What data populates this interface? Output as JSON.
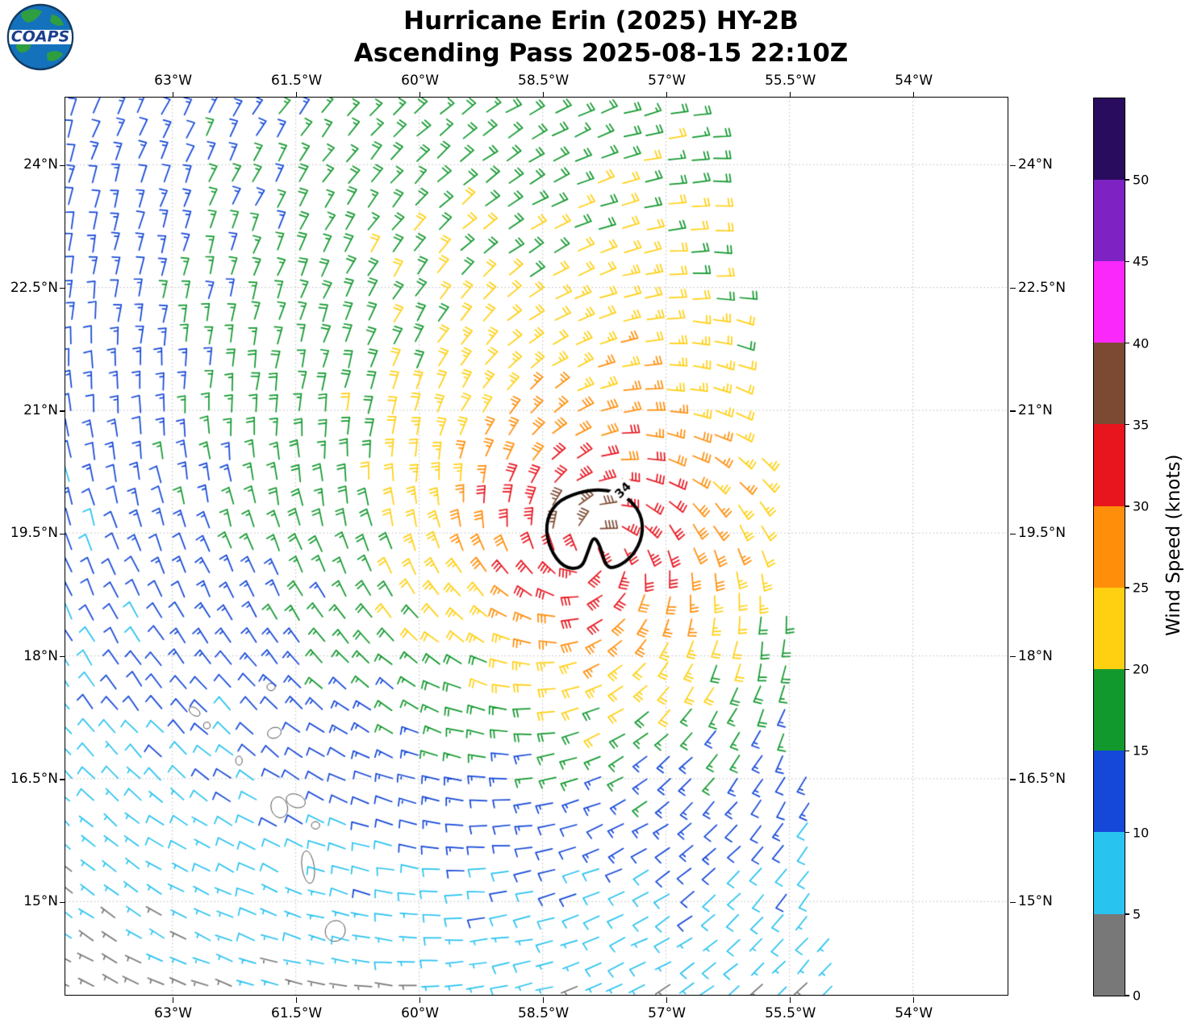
{
  "logo": {
    "text": "COAPS"
  },
  "title": {
    "line1": "Hurricane Erin (2025) HY-2B",
    "line2": "Ascending Pass 2025-08-15 22:10Z"
  },
  "axes": {
    "lon_range": [
      -64.3,
      -52.85
    ],
    "lat_range": [
      13.86,
      24.82
    ],
    "lon_ticks": [
      {
        "value": -63,
        "label": "63°W"
      },
      {
        "value": -61.5,
        "label": "61.5°W"
      },
      {
        "value": -60,
        "label": "60°W"
      },
      {
        "value": -58.5,
        "label": "58.5°W"
      },
      {
        "value": -57,
        "label": "57°W"
      },
      {
        "value": -55.5,
        "label": "55.5°W"
      },
      {
        "value": -54,
        "label": "54°W"
      }
    ],
    "lat_ticks": [
      {
        "value": 24,
        "label": "24°N"
      },
      {
        "value": 22.5,
        "label": "22.5°N"
      },
      {
        "value": 21,
        "label": "21°N"
      },
      {
        "value": 19.5,
        "label": "19.5°N"
      },
      {
        "value": 18,
        "label": "18°N"
      },
      {
        "value": 16.5,
        "label": "16.5°N"
      },
      {
        "value": 15,
        "label": "15°N"
      }
    ],
    "grid": "dotted"
  },
  "colorbar": {
    "label": "Wind Speed (knots)",
    "min": 0,
    "max": 55,
    "tick_values": [
      0,
      5,
      10,
      15,
      20,
      25,
      30,
      35,
      40,
      45,
      50
    ],
    "segments": [
      {
        "from": 0,
        "to": 5,
        "color": "#787878"
      },
      {
        "from": 5,
        "to": 10,
        "color": "#29c3f0"
      },
      {
        "from": 10,
        "to": 15,
        "color": "#1548d8"
      },
      {
        "from": 15,
        "to": 20,
        "color": "#12992e"
      },
      {
        "from": 20,
        "to": 25,
        "color": "#ffd012"
      },
      {
        "from": 25,
        "to": 30,
        "color": "#ff8e0a"
      },
      {
        "from": 30,
        "to": 35,
        "color": "#e8141e"
      },
      {
        "from": 35,
        "to": 40,
        "color": "#7c4a32"
      },
      {
        "from": 40,
        "to": 45,
        "color": "#fa28fa"
      },
      {
        "from": 45,
        "to": 50,
        "color": "#7e22c4"
      },
      {
        "from": 50,
        "to": 55,
        "color": "#2a0c5e"
      }
    ]
  },
  "chart_data": {
    "type": "wind_barb_map",
    "title": "Hurricane Erin (2025) HY-2B",
    "subtitle": "Ascending Pass 2025-08-15 22:10Z",
    "units": "knots",
    "grid_spacing_deg": 0.28,
    "storm_center": {
      "lon": -57.9,
      "lat": 19.3
    },
    "wind_profile_kt_by_radius_deg": [
      [
        0,
        32
      ],
      [
        0.35,
        36
      ],
      [
        0.7,
        33
      ],
      [
        1.2,
        29
      ],
      [
        2,
        23
      ],
      [
        3,
        18
      ],
      [
        4,
        15.5
      ],
      [
        5,
        13.2
      ],
      [
        6,
        11.2
      ],
      [
        7,
        9.5
      ],
      [
        8.5,
        7.5
      ],
      [
        12,
        6
      ]
    ],
    "asymmetry": {
      "amp_base": 1.2,
      "amp_per_deg": 0.9,
      "amp_max": 6,
      "phase_deg": 90
    },
    "inflow_deg": 20,
    "noise_kt": 1.8,
    "swath_right_edge": {
      "lon_at_lat": {
        "a": -52.9,
        "b": -0.1433
      }
    },
    "contour_34kt": {
      "label": "34",
      "center": {
        "lon": -57.85,
        "lat": 19.52
      },
      "points": [
        [
          -0.62,
          0.08
        ],
        [
          -0.5,
          0.35
        ],
        [
          -0.22,
          0.48
        ],
        [
          0.08,
          0.52
        ],
        [
          0.36,
          0.44
        ],
        [
          0.55,
          0.22
        ],
        [
          0.57,
          -0.05
        ],
        [
          0.45,
          -0.3
        ],
        [
          0.25,
          -0.44
        ],
        [
          0.12,
          -0.44
        ],
        [
          0.05,
          -0.18
        ],
        [
          -0.03,
          -0.05
        ],
        [
          -0.1,
          -0.25
        ],
        [
          -0.18,
          -0.46
        ],
        [
          -0.4,
          -0.44
        ],
        [
          -0.56,
          -0.22
        ]
      ],
      "label_offset": [
        0.33,
        0.5
      ],
      "label_rotation_deg": -45
    },
    "islands": [
      {
        "name": "St. Kitts",
        "lon": -62.73,
        "lat": 17.32,
        "rx": 0.075,
        "ry": 0.045,
        "rot": -35
      },
      {
        "name": "Nevis",
        "lon": -62.58,
        "lat": 17.15,
        "rx": 0.04,
        "ry": 0.04,
        "rot": 0
      },
      {
        "name": "Barbuda",
        "lon": -61.8,
        "lat": 17.62,
        "rx": 0.05,
        "ry": 0.045,
        "rot": 0
      },
      {
        "name": "Antigua",
        "lon": -61.76,
        "lat": 17.06,
        "rx": 0.085,
        "ry": 0.065,
        "rot": 20
      },
      {
        "name": "Montserrat",
        "lon": -62.19,
        "lat": 16.72,
        "rx": 0.04,
        "ry": 0.055,
        "rot": 0
      },
      {
        "name": "Guadeloupe-west",
        "lon": -61.7,
        "lat": 16.15,
        "rx": 0.1,
        "ry": 0.13,
        "rot": 15
      },
      {
        "name": "Guadeloupe-east",
        "lon": -61.5,
        "lat": 16.23,
        "rx": 0.12,
        "ry": 0.08,
        "rot": -20
      },
      {
        "name": "Marie-Galante",
        "lon": -61.26,
        "lat": 15.93,
        "rx": 0.05,
        "ry": 0.045,
        "rot": 0
      },
      {
        "name": "Dominica",
        "lon": -61.35,
        "lat": 15.42,
        "rx": 0.075,
        "ry": 0.2,
        "rot": 8
      },
      {
        "name": "Martinique",
        "lon": -61.02,
        "lat": 14.64,
        "rx": 0.12,
        "ry": 0.13,
        "rot": -30
      }
    ]
  }
}
